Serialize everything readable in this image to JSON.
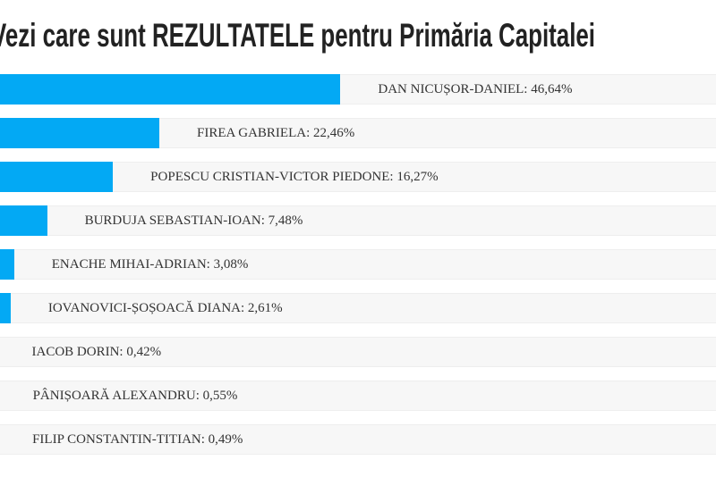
{
  "header": {
    "title": "Vezi care sunt REZULTATELE pentru Primăria Capitalei"
  },
  "chart_data": {
    "type": "bar",
    "orientation": "horizontal",
    "title": "Vezi care sunt REZULTATELE pentru Primăria Capitalei",
    "xlabel": "",
    "ylabel": "",
    "xlim": [
      0,
      100
    ],
    "grid": false,
    "legend": "none",
    "bar_color": "#03a9f4",
    "row_background": "#f7f7f7",
    "value_unit": "%",
    "categories": [
      "DAN NICUȘOR-DANIEL",
      "FIREA GABRIELA",
      "POPESCU CRISTIAN-VICTOR PIEDONE",
      "BURDUJA SEBASTIAN-IOAN",
      "ENACHE MIHAI-ADRIAN",
      "IOVANOVICI-ȘOȘOACĂ DIANA",
      "IACOB DORIN",
      "PÂNIȘOARĂ ALEXANDRU",
      "FILIP CONSTANTIN-TITIAN"
    ],
    "values": [
      46.64,
      22.46,
      16.27,
      7.48,
      3.08,
      2.61,
      0.42,
      0.55,
      0.49
    ],
    "results": [
      {
        "name": "DAN NICUȘOR-DANIEL",
        "value": 46.64,
        "display": "46,64%"
      },
      {
        "name": "FIREA GABRIELA",
        "value": 22.46,
        "display": "22,46%"
      },
      {
        "name": "POPESCU CRISTIAN-VICTOR PIEDONE",
        "value": 16.27,
        "display": "16,27%"
      },
      {
        "name": "BURDUJA SEBASTIAN-IOAN",
        "value": 7.48,
        "display": "7,48%"
      },
      {
        "name": "ENACHE MIHAI-ADRIAN",
        "value": 3.08,
        "display": "3,08%"
      },
      {
        "name": "IOVANOVICI-ȘOȘOACĂ DIANA",
        "value": 2.61,
        "display": "2,61%"
      },
      {
        "name": "IACOB DORIN",
        "value": 0.42,
        "display": "0,42%"
      },
      {
        "name": "PÂNIȘOARĂ ALEXANDRU",
        "value": 0.55,
        "display": "0,55%"
      },
      {
        "name": "FILIP CONSTANTIN-TITIAN",
        "value": 0.49,
        "display": "0,49%"
      }
    ]
  }
}
